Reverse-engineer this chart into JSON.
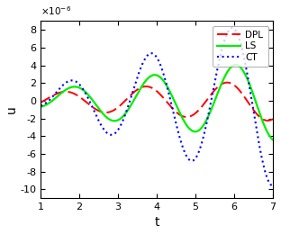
{
  "xlim": [
    1,
    7
  ],
  "ylim_min": -1.1e-05,
  "ylim_max": 9e-06,
  "xlabel": "t",
  "ylabel": "u",
  "ytick_scale": 1e-06,
  "yticks": [
    -10,
    -8,
    -6,
    -4,
    -2,
    0,
    2,
    4,
    6,
    8
  ],
  "xticks": [
    1,
    2,
    3,
    4,
    5,
    6,
    7
  ],
  "legend_labels": [
    "DPL",
    "LS",
    "CT"
  ],
  "dpl_color": "#FF0000",
  "ls_color": "#00EE00",
  "ct_color": "#0000FF",
  "bg_color": "#FFFFFF",
  "dpl_lw": 1.4,
  "ls_lw": 1.6,
  "ct_lw": 1.5,
  "legend_loc": "upper right",
  "period": 2.1,
  "ct_amp": 1.85,
  "ct_phase": 0.62,
  "ct_growth": 0.88,
  "ls_amp": 1.15,
  "ls_phase": 0.9,
  "ls_growth": 0.72,
  "dpl_amp": 0.78,
  "dpl_phase": 0.55,
  "dpl_growth": 0.55
}
